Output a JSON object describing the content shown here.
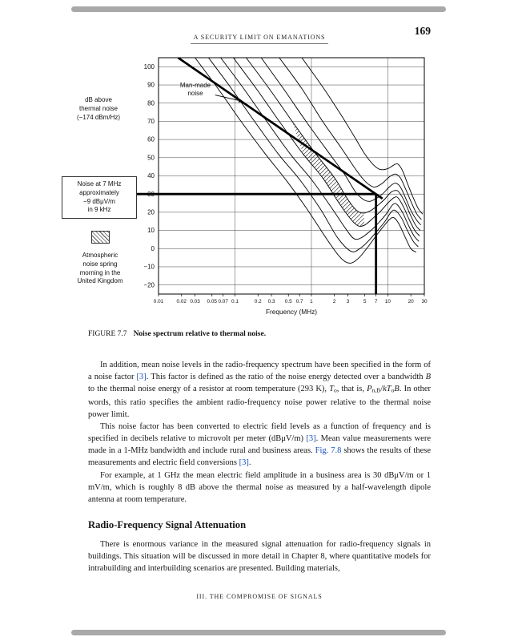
{
  "header": {
    "running_title": "A SECURITY LIMIT ON EMANATIONS",
    "page_number": "169"
  },
  "figure": {
    "ylabel_lines": [
      "dB above",
      "thermal noise",
      "(−174 dBm/Hz)"
    ],
    "callout_lines": [
      "Noise at 7 MHz",
      "approximately",
      "−9 dBμV/m",
      "in 9 kHz"
    ],
    "legend_lines": [
      "Atmospheric",
      "noise spring",
      "morning in the",
      "United Kingdom"
    ],
    "manmade_lines": [
      "Man-made",
      "noise"
    ],
    "caption_label": "FIGURE 7.7",
    "caption_text": "Noise spectrum relative to thermal noise."
  },
  "body": {
    "heading": "Radio-Frequency Signal Attenuation",
    "paragraphs": [
      [
        {
          "t": "In addition, mean noise levels in the radio-frequency spectrum have been specified in the form of a noise factor "
        },
        {
          "t": "[3]",
          "s": "link"
        },
        {
          "t": ". This factor is defined as the ratio of the noise energy detected over a bandwidth "
        },
        {
          "t": "B",
          "s": "italic"
        },
        {
          "t": " to the thermal noise energy of a resistor at room temperature (293 K), "
        },
        {
          "t": "T",
          "s": "italic"
        },
        {
          "t": "o",
          "s": "sub"
        },
        {
          "t": ", that is, "
        },
        {
          "t": "P",
          "s": "italic"
        },
        {
          "t": "n,B",
          "s": "sub"
        },
        {
          "t": "/"
        },
        {
          "t": "kT",
          "s": "italic"
        },
        {
          "t": "o",
          "s": "sub"
        },
        {
          "t": "B",
          "s": "italic"
        },
        {
          "t": ". In other words, this ratio specifies the ambient radio-frequency noise power relative to the thermal noise power limit."
        }
      ],
      [
        {
          "t": "This noise factor has been converted to electric field levels as a function of frequency and is specified in decibels relative to microvolt per meter (dBμV/m) "
        },
        {
          "t": "[3]",
          "s": "link"
        },
        {
          "t": ". Mean value measurements were made in a 1-MHz bandwidth and include rural and business areas. "
        },
        {
          "t": "Fig. 7.8",
          "s": "link"
        },
        {
          "t": " shows the results of these measurements and electric field conversions "
        },
        {
          "t": "[3]",
          "s": "link"
        },
        {
          "t": "."
        }
      ],
      [
        {
          "t": "For example, at 1 GHz the mean electric field amplitude in a business area is 30 dBμV/m or 1 mV/m, which is roughly 8 dB above the thermal noise as measured by a half-wavelength dipole antenna at room temperature."
        }
      ],
      [
        {
          "t": "There is enormous variance in the measured signal attenuation for radio-frequency signals in buildings. This situation will be discussed in more detail in Chapter 8, where quantitative models for intrabuilding and interbuilding scenarios are presented. Building materials,"
        }
      ]
    ]
  },
  "footer": {
    "text": "III. THE COMPROMISE OF SIGNALS"
  },
  "colors": {
    "link": "#1b4fbe",
    "edge_bar": "#a9a9a9"
  },
  "chart_data": {
    "type": "line",
    "title": "Noise spectrum relative to thermal noise",
    "x_axis": {
      "label": "Frequency (MHz)",
      "scale": "log",
      "range": [
        0.01,
        30
      ],
      "tick_labels": [
        "0.01",
        "0.02",
        "0.03",
        "0.05",
        "0.07",
        "0.1",
        "0.2",
        "0.3",
        "0.5",
        "0.7",
        "1",
        "2",
        "3",
        "5",
        "7",
        "10",
        "20",
        "30"
      ],
      "grid_decades": [
        0.1,
        1,
        10
      ]
    },
    "y_axis": {
      "label": "dB above thermal noise (−174 dBm/Hz)",
      "range": [
        -25,
        105
      ],
      "tick_labels": [
        "100",
        "90",
        "80",
        "70",
        "60",
        "50",
        "40",
        "30",
        "20",
        "10",
        "0",
        "−10",
        "−20"
      ]
    },
    "series": [
      {
        "name": "man-made-noise",
        "width": 2.7,
        "points": [
          [
            0.018,
            105
          ],
          [
            8.5,
            27.5
          ]
        ]
      },
      {
        "name": "atmospheric-1",
        "points": [
          [
            0.03,
            105
          ],
          [
            0.06,
            88
          ],
          [
            0.12,
            70
          ],
          [
            0.25,
            52
          ],
          [
            0.48,
            37
          ],
          [
            0.9,
            21
          ],
          [
            1.6,
            5
          ],
          [
            2.4,
            -5
          ],
          [
            3.2,
            -8
          ],
          [
            4.2,
            -5
          ],
          [
            5.5,
            1
          ],
          [
            7,
            7
          ],
          [
            8.5,
            11.5
          ],
          [
            10.5,
            16
          ],
          [
            12,
            17
          ],
          [
            14,
            13.5
          ],
          [
            17,
            6
          ],
          [
            20,
            0
          ],
          [
            23.5,
            -2
          ]
        ]
      },
      {
        "name": "atmospheric-2",
        "points": [
          [
            0.045,
            105
          ],
          [
            0.09,
            88
          ],
          [
            0.18,
            70
          ],
          [
            0.37,
            52
          ],
          [
            0.7,
            38
          ],
          [
            1.3,
            22
          ],
          [
            2.2,
            6
          ],
          [
            3.3,
            -1.5
          ],
          [
            4.3,
            0
          ],
          [
            5.5,
            4
          ],
          [
            7,
            9
          ],
          [
            9,
            14.5
          ],
          [
            11,
            20
          ],
          [
            12.5,
            21
          ],
          [
            15,
            17
          ],
          [
            18,
            10
          ],
          [
            21.5,
            4
          ],
          [
            25,
            1
          ]
        ]
      },
      {
        "name": "atmospheric-3",
        "points": [
          [
            0.065,
            105
          ],
          [
            0.13,
            88
          ],
          [
            0.26,
            70
          ],
          [
            0.53,
            52
          ],
          [
            1,
            38
          ],
          [
            1.8,
            23
          ],
          [
            2.8,
            11
          ],
          [
            3.6,
            5.5
          ],
          [
            4.5,
            6
          ],
          [
            6,
            10
          ],
          [
            7.5,
            14
          ],
          [
            9.5,
            19
          ],
          [
            11.5,
            24
          ],
          [
            13,
            24.5
          ],
          [
            15.5,
            20
          ],
          [
            18.5,
            13
          ],
          [
            22,
            7
          ],
          [
            25.5,
            4
          ]
        ]
      },
      {
        "name": "atmospheric-4",
        "points": [
          [
            0.095,
            105
          ],
          [
            0.19,
            88
          ],
          [
            0.38,
            70
          ],
          [
            0.78,
            52
          ],
          [
            1.4,
            39
          ],
          [
            2.3,
            25
          ],
          [
            3.3,
            16
          ],
          [
            4.1,
            12.5
          ],
          [
            5,
            13
          ],
          [
            6.5,
            17
          ],
          [
            8,
            20.5
          ],
          [
            10,
            25
          ],
          [
            12,
            28
          ],
          [
            13.5,
            28
          ],
          [
            16,
            23
          ],
          [
            19,
            16
          ],
          [
            22.5,
            10
          ],
          [
            26,
            7
          ]
        ]
      },
      {
        "name": "atmospheric-5",
        "points": [
          [
            0.14,
            105
          ],
          [
            0.28,
            88
          ],
          [
            0.56,
            70
          ],
          [
            1.1,
            53
          ],
          [
            2,
            39
          ],
          [
            3,
            27
          ],
          [
            3.9,
            21
          ],
          [
            4.8,
            19.5
          ],
          [
            6,
            21
          ],
          [
            7.5,
            24
          ],
          [
            9,
            27
          ],
          [
            11,
            31
          ],
          [
            12.8,
            32
          ],
          [
            14,
            31
          ],
          [
            16.5,
            26
          ],
          [
            19.5,
            19
          ],
          [
            23,
            13
          ],
          [
            26.5,
            10
          ]
        ]
      },
      {
        "name": "atmospheric-6",
        "points": [
          [
            0.22,
            105
          ],
          [
            0.43,
            88
          ],
          [
            0.85,
            70
          ],
          [
            1.6,
            54
          ],
          [
            2.7,
            41
          ],
          [
            3.8,
            31
          ],
          [
            4.8,
            27
          ],
          [
            5.8,
            26
          ],
          [
            7,
            27.5
          ],
          [
            8.5,
            30
          ],
          [
            10.5,
            34
          ],
          [
            12.5,
            36
          ],
          [
            14.5,
            34
          ],
          [
            17,
            28
          ],
          [
            20,
            21
          ],
          [
            23.5,
            16
          ],
          [
            27,
            13
          ]
        ]
      },
      {
        "name": "atmospheric-7",
        "points": [
          [
            0.38,
            105
          ],
          [
            0.75,
            88
          ],
          [
            1.4,
            70
          ],
          [
            2.4,
            56
          ],
          [
            3.6,
            45
          ],
          [
            4.8,
            38
          ],
          [
            6,
            34.5
          ],
          [
            7,
            34
          ],
          [
            8.5,
            36
          ],
          [
            10.5,
            39.5
          ],
          [
            12.5,
            41
          ],
          [
            14.5,
            39
          ],
          [
            17,
            33
          ],
          [
            20,
            26
          ],
          [
            24,
            19
          ],
          [
            27.5,
            16
          ]
        ]
      },
      {
        "name": "atmospheric-8",
        "points": [
          [
            0.75,
            105
          ],
          [
            1.4,
            89
          ],
          [
            2.4,
            74
          ],
          [
            3.6,
            62
          ],
          [
            5,
            52
          ],
          [
            6.5,
            46
          ],
          [
            8,
            43.5
          ],
          [
            10,
            44
          ],
          [
            12,
            46
          ],
          [
            13.5,
            46.5
          ],
          [
            15.5,
            43
          ],
          [
            18,
            36
          ],
          [
            21,
            29
          ],
          [
            25,
            22
          ],
          [
            28.5,
            19
          ]
        ]
      }
    ],
    "hatch_between": {
      "upper": "atmospheric-5",
      "lower": "atmospheric-4",
      "f_range": [
        0.4,
        5
      ],
      "label": "Atmospheric noise spring morning in the United Kingdom"
    },
    "reference": {
      "horizontal_dB": 30,
      "vertical_MHz": 7,
      "note": "Noise at 7 MHz approximately −9 dBμV/m in 9 kHz"
    },
    "annotations": {
      "manmade_label": "Man-made noise",
      "arrow": {
        "from": [
          0.055,
          84.5
        ],
        "to": [
          0.125,
          81
        ]
      }
    }
  }
}
